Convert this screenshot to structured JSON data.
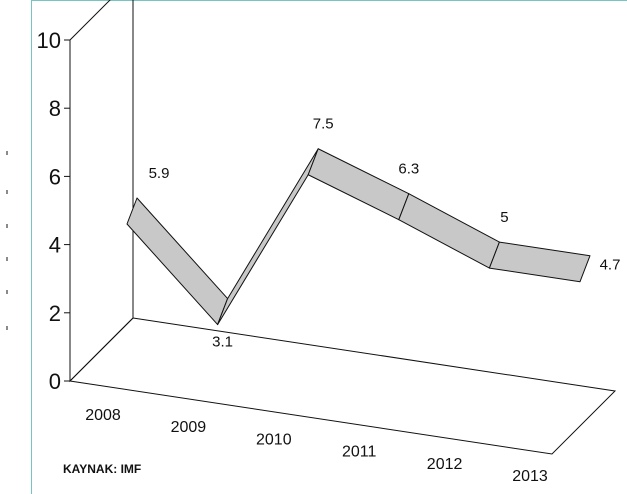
{
  "chart_data": {
    "type": "line",
    "categories": [
      "2008",
      "2009",
      "2010",
      "2011",
      "2012",
      "2013"
    ],
    "values": [
      5.9,
      3.1,
      7.5,
      6.3,
      5,
      4.7
    ],
    "data_labels": [
      "5.9",
      "3.1",
      "7.5",
      "6.3",
      "5",
      "4.7"
    ],
    "y_ticks": [
      "0",
      "2",
      "4",
      "6",
      "8",
      "10"
    ],
    "ylim": [
      0,
      10
    ],
    "title": "",
    "xlabel": "",
    "ylabel": "",
    "source": "KAYNAK: IMF",
    "ribbon_color": "#c8c8c8",
    "line_color": "#111111"
  }
}
